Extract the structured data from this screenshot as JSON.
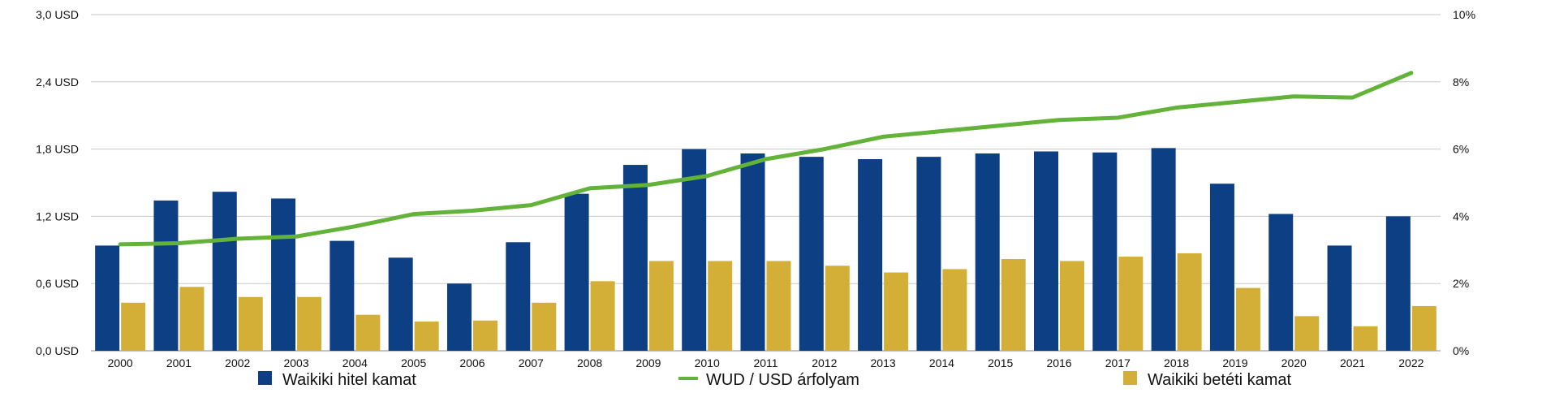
{
  "chart_data": {
    "type": "bar",
    "title": "",
    "xlabel": "",
    "ylabel": "",
    "categories": [
      "2000",
      "2001",
      "2002",
      "2003",
      "2004",
      "2005",
      "2006",
      "2007",
      "2008",
      "2009",
      "2010",
      "2011",
      "2012",
      "2013",
      "2014",
      "2015",
      "2016",
      "2017",
      "2018",
      "2019",
      "2020",
      "2021",
      "2022"
    ],
    "left_axis": {
      "ylim": [
        0,
        3.0
      ],
      "ticks": [
        0,
        0.6,
        1.2,
        1.8,
        2.4,
        3.0
      ],
      "tick_labels": [
        "0,0 USD",
        "0,6 USD",
        "1,2 USD",
        "1,8 USD",
        "2,4 USD",
        "3,0 USD"
      ]
    },
    "right_axis": {
      "ylim": [
        0,
        10
      ],
      "ticks": [
        0,
        2,
        4,
        6,
        8,
        10
      ],
      "tick_labels": [
        "0%",
        "2%",
        "4%",
        "6%",
        "8%",
        "10%"
      ]
    },
    "grid": true,
    "legend_position": "bottom",
    "series": [
      {
        "name": "Waikiki hitel kamat",
        "type": "bar",
        "axis": "right",
        "color": "#0d3f84",
        "values": [
          3.13,
          4.47,
          4.73,
          4.53,
          3.27,
          2.77,
          2.0,
          3.23,
          4.67,
          5.53,
          6.0,
          5.87,
          5.77,
          5.7,
          5.77,
          5.87,
          5.93,
          5.9,
          6.03,
          4.97,
          4.07,
          3.13,
          4.0
        ]
      },
      {
        "name": "Waikiki betéti kamat",
        "type": "bar",
        "axis": "right",
        "color": "#d4af37",
        "values": [
          1.43,
          1.9,
          1.6,
          1.6,
          1.07,
          0.87,
          0.9,
          1.43,
          2.07,
          2.67,
          2.67,
          2.67,
          2.53,
          2.33,
          2.43,
          2.73,
          2.67,
          2.8,
          2.9,
          1.87,
          1.03,
          0.73,
          1.33
        ]
      },
      {
        "name": "WUD / USD árfolyam",
        "type": "line",
        "axis": "left",
        "color": "#63b33a",
        "values": [
          0.95,
          0.96,
          1.0,
          1.02,
          1.11,
          1.22,
          1.25,
          1.3,
          1.45,
          1.48,
          1.56,
          1.71,
          1.8,
          1.91,
          1.96,
          2.01,
          2.06,
          2.08,
          2.17,
          2.22,
          2.27,
          2.26,
          2.48
        ]
      }
    ],
    "legend": [
      {
        "label": "Waikiki hitel kamat",
        "color": "#0d3f84",
        "marker": "square"
      },
      {
        "label": "WUD / USD árfolyam",
        "color": "#63b33a",
        "marker": "line"
      },
      {
        "label": "Waikiki betéti kamat",
        "color": "#d4af37",
        "marker": "square"
      }
    ]
  }
}
